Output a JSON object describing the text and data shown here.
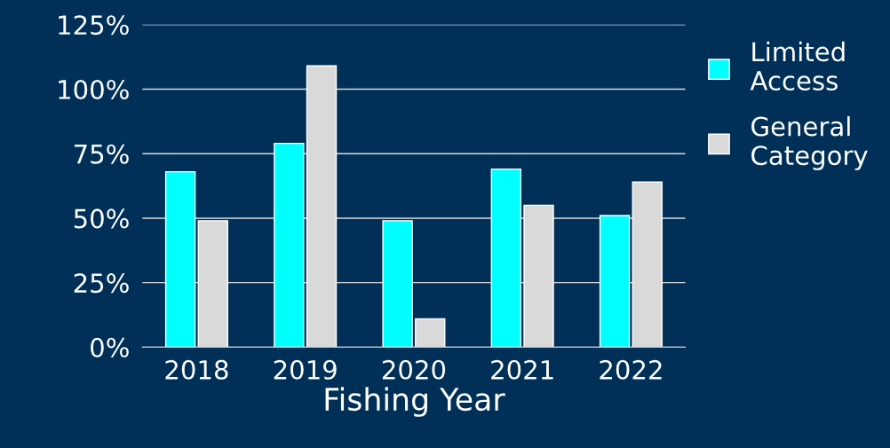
{
  "chart_data": {
    "type": "bar",
    "xlabel": "Fishing Year",
    "categories": [
      "2018",
      "2019",
      "2020",
      "2021",
      "2022"
    ],
    "series": [
      {
        "name": "Limited Access",
        "color": "#00ffff",
        "values": [
          68,
          79,
          49,
          69,
          51
        ]
      },
      {
        "name": "General Category",
        "color": "#d9d9d9",
        "values": [
          49,
          109,
          11,
          55,
          64
        ]
      }
    ],
    "ylim": [
      0,
      125
    ],
    "yticks": [
      {
        "value": 0,
        "label": "0%"
      },
      {
        "value": 25,
        "label": "25%"
      },
      {
        "value": 50,
        "label": "50%"
      },
      {
        "value": 75,
        "label": "75%"
      },
      {
        "value": 100,
        "label": "100%"
      },
      {
        "value": 125,
        "label": "125%"
      }
    ],
    "grid": "y",
    "legend": "top right"
  }
}
